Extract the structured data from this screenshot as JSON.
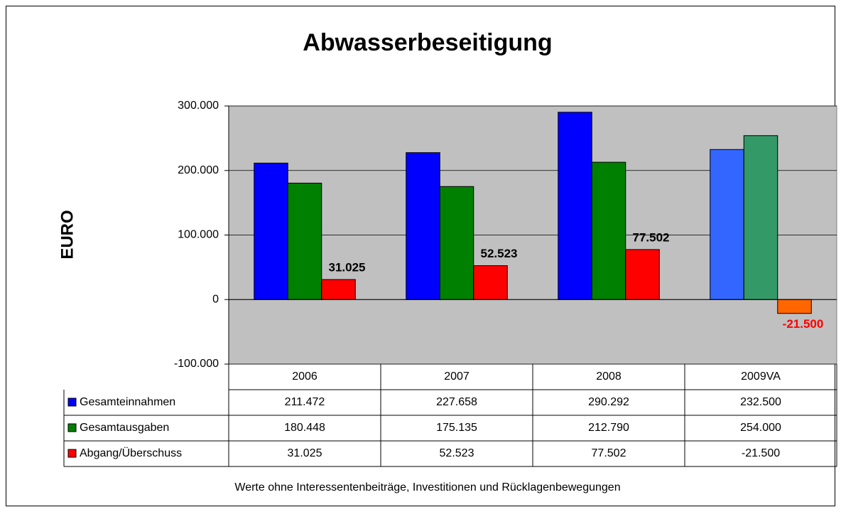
{
  "chart_data": {
    "type": "bar",
    "title": "Abwasserbeseitigung",
    "y_label": "EURO",
    "footnote": "Werte ohne Interessentenbeiträge, Investitionen und Rücklagenbewegungen",
    "categories": [
      "2006",
      "2007",
      "2008",
      "2009VA"
    ],
    "ylim": [
      -100000,
      300000
    ],
    "yticks": [
      {
        "value": -100000,
        "label": "-100.000"
      },
      0,
      {
        "value": 100000,
        "label": "100.000"
      },
      {
        "value": 200000,
        "label": "200.000"
      },
      {
        "value": 300000,
        "label": "300.000"
      }
    ],
    "grid": true,
    "plot_background": "#c0c0c0",
    "data_table": true,
    "series": [
      {
        "name": "Gesamteinnahmen",
        "color": "#0000ff",
        "colors": [
          "#0000ff",
          "#0000ff",
          "#0000ff",
          "#3366ff"
        ],
        "values": [
          211472,
          227658,
          290292,
          232500
        ],
        "value_labels": [
          "211.472",
          "227.658",
          "290.292",
          "232.500"
        ]
      },
      {
        "name": "Gesamtausgaben",
        "color": "#008000",
        "colors": [
          "#008000",
          "#008000",
          "#008000",
          "#339966"
        ],
        "values": [
          180448,
          175135,
          212790,
          254000
        ],
        "value_labels": [
          "180.448",
          "175.135",
          "212.790",
          "254.000"
        ]
      },
      {
        "name": "Abgang/Überschuss",
        "color": "#ff0000",
        "colors": [
          "#ff0000",
          "#ff0000",
          "#ff0000",
          "#ff6600"
        ],
        "values": [
          31025,
          52523,
          77502,
          -21500
        ],
        "value_labels": [
          "31.025",
          "52.523",
          "77.502",
          "-21.500"
        ],
        "show_value_labels": true,
        "value_label_colors": [
          "#000000",
          "#000000",
          "#000000",
          "#ff0000"
        ]
      }
    ]
  }
}
